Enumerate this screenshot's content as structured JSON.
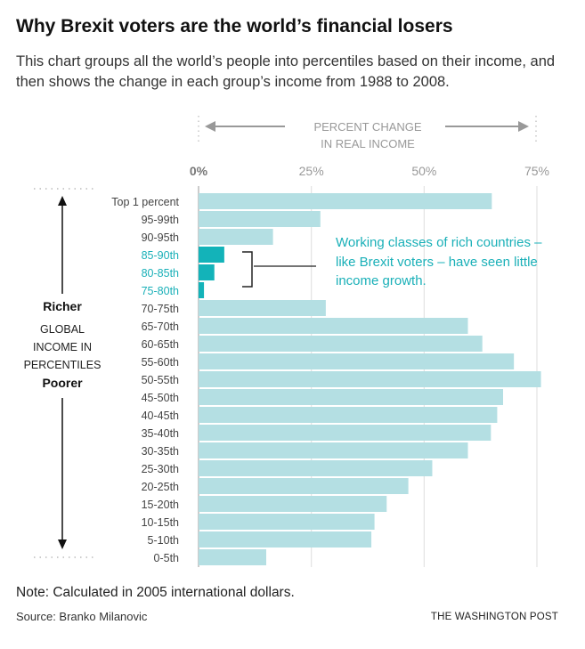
{
  "title": "Why Brexit voters are the world’s financial losers",
  "subtitle": "This chart groups all the world’s people into percentiles based on their income, and then shows the change in each group’s income from 1988 to 2008.",
  "note": "Note: Calculated in 2005 international dollars.",
  "source": "Source: Branko Milanovic",
  "brand": "THE WASHINGTON POST",
  "annotation": "Working classes of rich countries – like Brexit voters – have seen little income growth.",
  "colors": {
    "bar": "#b4dfe3",
    "highlight": "#13b3b9",
    "highlight_text": "#1ab0b8"
  },
  "chart_data": {
    "type": "bar",
    "orientation": "horizontal",
    "xlabel_lines": [
      "PERCENT CHANGE",
      "IN REAL INCOME"
    ],
    "ylabel": {
      "top": "Richer",
      "middle": [
        "GLOBAL",
        "INCOME IN",
        "PERCENTILES"
      ],
      "bottom": "Poorer"
    },
    "xlim": [
      0,
      75
    ],
    "xticks": [
      0,
      25,
      50,
      75
    ],
    "xtick_labels": [
      "0%",
      "25%",
      "50%",
      "75%"
    ],
    "grid": true,
    "categories": [
      "Top 1 percent",
      "95-99th",
      "90-95th",
      "85-90th",
      "80-85th",
      "75-80th",
      "70-75th",
      "65-70th",
      "60-65th",
      "55-60th",
      "50-55th",
      "45-50th",
      "40-45th",
      "35-40th",
      "30-35th",
      "25-30th",
      "20-25th",
      "15-20th",
      "10-15th",
      "5-10th",
      "0-5th"
    ],
    "values": [
      65,
      27,
      16.5,
      5.7,
      3.5,
      1.2,
      28.2,
      59.7,
      62.9,
      69.9,
      75.9,
      67.5,
      66.2,
      64.8,
      59.7,
      51.8,
      46.5,
      41.7,
      39,
      38.3,
      15
    ],
    "highlighted": [
      "85-90th",
      "80-85th",
      "75-80th"
    ]
  }
}
